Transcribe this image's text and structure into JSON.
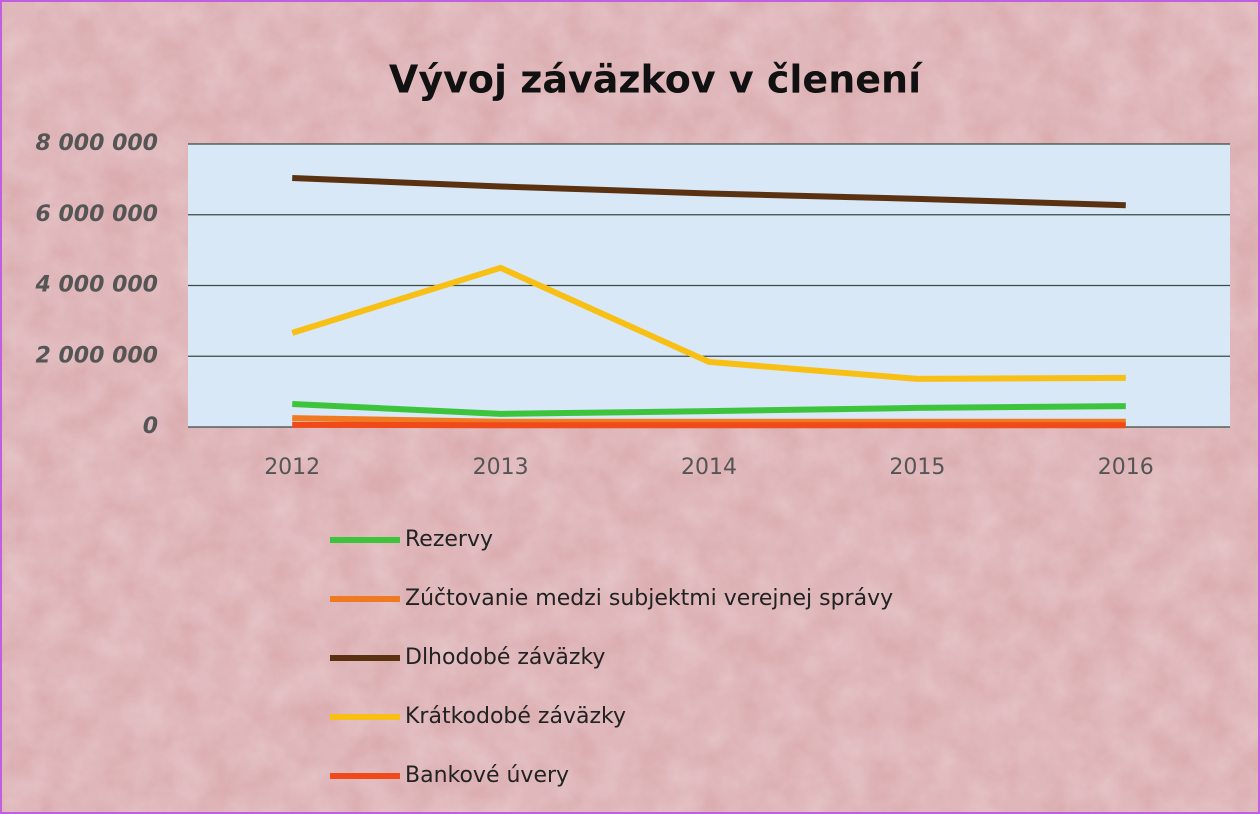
{
  "chart_data": {
    "type": "line",
    "title": "Vývoj záväzkov v členení",
    "categories": [
      "2012",
      "2013",
      "2014",
      "2015",
      "2016"
    ],
    "series": [
      {
        "name": "Rezervy",
        "color": "#3cc43c",
        "values": [
          650000,
          370000,
          450000,
          540000,
          590000
        ]
      },
      {
        "name": "Zúčtovanie medzi subjektmi verejnej správy",
        "color": "#f07a22",
        "values": [
          250000,
          150000,
          150000,
          150000,
          150000
        ]
      },
      {
        "name": "Dlhodobé záväzky",
        "color": "#5a3212",
        "values": [
          7040000,
          6800000,
          6600000,
          6450000,
          6270000
        ]
      },
      {
        "name": "Krátkodobé záväzky",
        "color": "#f8c014",
        "values": [
          2660000,
          4500000,
          1840000,
          1360000,
          1390000
        ]
      },
      {
        "name": "Bankové úvery",
        "color": "#f04a1a",
        "values": [
          60000,
          50000,
          50000,
          50000,
          50000
        ]
      }
    ],
    "ylim": [
      0,
      8000000
    ],
    "yticks": [
      0,
      {
        "value": 2000000,
        "label": "2 000 000"
      },
      {
        "value": 4000000,
        "label": "4 000 000"
      },
      {
        "value": 6000000,
        "label": "6 000 000"
      },
      {
        "value": 8000000,
        "label": "8 000 000"
      }
    ],
    "grid": true
  }
}
